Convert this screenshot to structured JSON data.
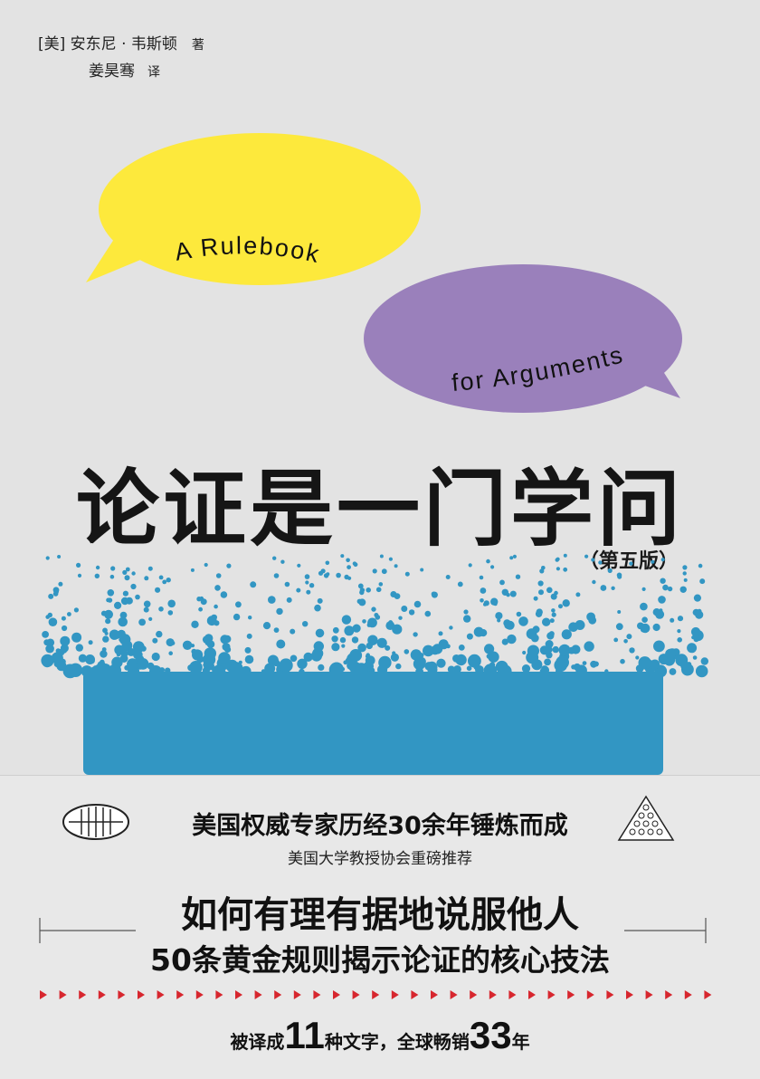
{
  "author": {
    "name": "[美] 安东尼 · 韦斯顿",
    "role": "著"
  },
  "translator": {
    "name": "姜昊骞",
    "role": "译"
  },
  "english_title": {
    "line1": "A Rulebook",
    "line2": "for Arguments"
  },
  "title": "论证是一门学问",
  "edition": "（第五版）",
  "taglines": {
    "line1": "美国权威专家历经30余年锤炼而成",
    "line2": "美国大学教授协会重磅推荐",
    "line3": "如何有理有据地说服他人",
    "line4": "50条黄金规则揭示论证的核心技法"
  },
  "footer": {
    "part1": "被译成",
    "num1": "11",
    "part2": "种文字，全球畅销",
    "num2": "33",
    "part3": "年"
  },
  "colors": {
    "yellow_bubble": "#fde93c",
    "purple_bubble": "#9a80bb",
    "blue": "#3296c3",
    "red_arrows": "#d7262e",
    "background": "#e3e3e3"
  },
  "icons": [
    "publisher-logo-icon",
    "dot-triangle-icon",
    "red-arrow-icon"
  ]
}
